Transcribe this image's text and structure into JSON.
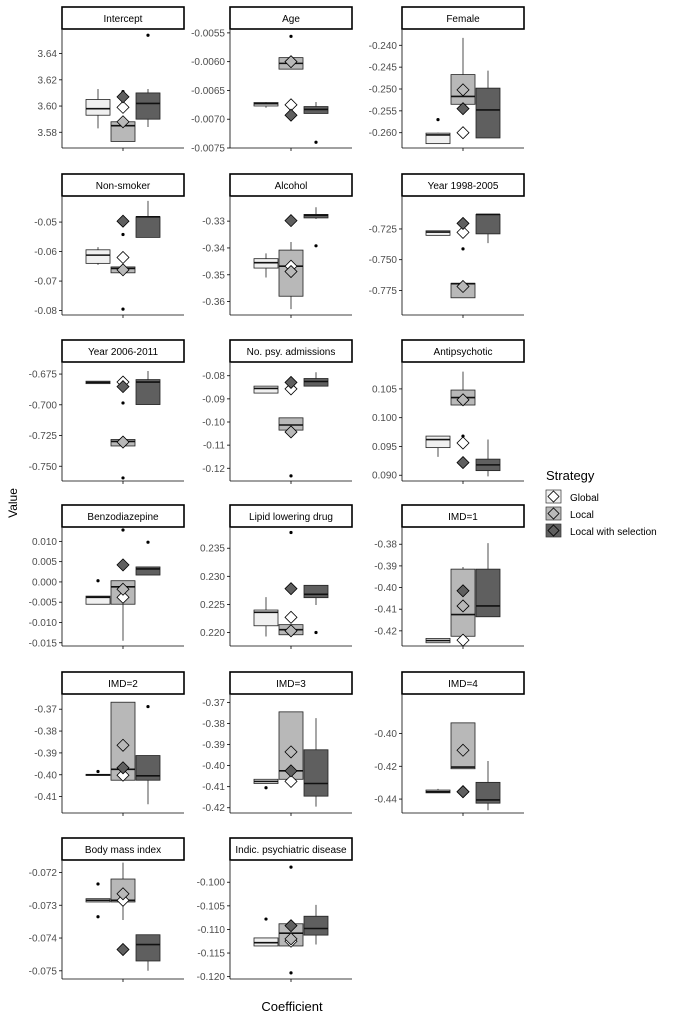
{
  "figure": {
    "ylabel": "Value",
    "xlabel": "Coefficient",
    "legend_title": "Strategy",
    "legend_position": "right"
  },
  "colors": {
    "global": "#f0f0f0",
    "local": "#b8b8b8",
    "local_selection": "#5f5f5f",
    "axis": "#000000",
    "tick_text": "#4d4d4d"
  },
  "chart_data": {
    "type": "boxplot",
    "strategies": [
      {
        "key": "global",
        "name": "Global"
      },
      {
        "key": "local",
        "name": "Local"
      },
      {
        "key": "local_selection",
        "name": "Local with selection"
      }
    ],
    "panels": [
      {
        "title": "Intercept",
        "ylim": [
          3.568,
          3.658
        ],
        "ticks": [
          3.58,
          3.6,
          3.62,
          3.64
        ],
        "tick_labels": [
          "3.58",
          "3.60",
          "3.62",
          "3.64"
        ],
        "boxes": [
          {
            "q1": 3.593,
            "median": 3.598,
            "q3": 3.605,
            "lo": 3.583,
            "hi": 3.613,
            "out": [],
            "mean": 3.599
          },
          {
            "q1": 3.573,
            "median": 3.585,
            "q3": 3.588,
            "lo": 3.573,
            "hi": 3.591,
            "out": [
              3.611
            ],
            "mean": 3.588
          },
          {
            "q1": 3.59,
            "median": 3.602,
            "q3": 3.61,
            "lo": 3.584,
            "hi": 3.613,
            "out": [
              3.654
            ],
            "mean": 3.607
          }
        ]
      },
      {
        "title": "Age",
        "ylim": [
          -0.0075,
          -0.00545
        ],
        "ticks": [
          -0.0075,
          -0.007,
          -0.0065,
          -0.006,
          -0.0055
        ],
        "tick_labels": [
          "-0.0075",
          "-0.0070",
          "-0.0065",
          "-0.0060",
          "-0.0055"
        ],
        "boxes": [
          {
            "q1": -0.00677,
            "median": -0.00673,
            "q3": -0.00671,
            "lo": -0.0068,
            "hi": -0.0067,
            "out": [],
            "mean": -0.00675
          },
          {
            "q1": -0.00613,
            "median": -0.00603,
            "q3": -0.00593,
            "lo": -0.00613,
            "hi": -0.00593,
            "out": [
              -0.00556
            ],
            "mean": -0.006
          },
          {
            "q1": -0.0069,
            "median": -0.00683,
            "q3": -0.00678,
            "lo": -0.0069,
            "hi": -0.0067,
            "out": [
              -0.0074
            ],
            "mean": -0.00693
          }
        ]
      },
      {
        "title": "Female",
        "ylim": [
          -0.2635,
          -0.2365
        ],
        "ticks": [
          -0.26,
          -0.255,
          -0.25,
          -0.245,
          -0.24
        ],
        "tick_labels": [
          "-0.260",
          "-0.255",
          "-0.250",
          "-0.245",
          "-0.240"
        ],
        "boxes": [
          {
            "q1": -0.2625,
            "median": -0.2605,
            "q3": -0.2601,
            "lo": -0.2625,
            "hi": -0.26,
            "out": [
              -0.257
            ],
            "mean": -0.26
          },
          {
            "q1": -0.2535,
            "median": -0.2517,
            "q3": -0.2467,
            "lo": -0.2535,
            "hi": -0.2383,
            "out": [],
            "mean": -0.2502
          },
          {
            "q1": -0.2612,
            "median": -0.2548,
            "q3": -0.2498,
            "lo": -0.2612,
            "hi": -0.2458,
            "out": [],
            "mean": -0.2545
          }
        ]
      },
      {
        "title": "Non-smoker",
        "ylim": [
          -0.0815,
          -0.0415
        ],
        "ticks": [
          -0.08,
          -0.07,
          -0.06,
          -0.05
        ],
        "tick_labels": [
          "-0.08",
          "-0.07",
          "-0.06",
          "-0.05"
        ],
        "boxes": [
          {
            "q1": -0.064,
            "median": -0.0612,
            "q3": -0.0594,
            "lo": -0.0645,
            "hi": -0.0585,
            "out": [],
            "mean": -0.062
          },
          {
            "q1": -0.0672,
            "median": -0.0657,
            "q3": -0.0652,
            "lo": -0.0672,
            "hi": -0.0652,
            "out": [
              -0.0795,
              -0.0542
            ],
            "mean": -0.0662
          },
          {
            "q1": -0.0552,
            "median": -0.0482,
            "q3": -0.0482,
            "lo": -0.0552,
            "hi": -0.0428,
            "out": [],
            "mean": -0.0497
          }
        ]
      },
      {
        "title": "Alcohol",
        "ylim": [
          -0.365,
          -0.321
        ],
        "ticks": [
          -0.36,
          -0.35,
          -0.34,
          -0.33
        ],
        "tick_labels": [
          "-0.36",
          "-0.35",
          "-0.34",
          "-0.33"
        ],
        "boxes": [
          {
            "q1": -0.3475,
            "median": -0.3455,
            "q3": -0.344,
            "lo": -0.351,
            "hi": -0.342,
            "out": [],
            "mean": -0.3468
          },
          {
            "q1": -0.358,
            "median": -0.3468,
            "q3": -0.3408,
            "lo": -0.3628,
            "hi": -0.3378,
            "out": [],
            "mean": -0.3488
          },
          {
            "q1": -0.3288,
            "median": -0.3278,
            "q3": -0.3275,
            "lo": -0.3292,
            "hi": -0.3248,
            "out": [
              -0.3392
            ],
            "mean": -0.3298
          }
        ]
      },
      {
        "title": "Year 1998-2005",
        "ylim": [
          -0.795,
          -0.699
        ],
        "ticks": [
          -0.775,
          -0.75,
          -0.725
        ],
        "tick_labels": [
          "-0.775",
          "-0.750",
          "-0.725"
        ],
        "boxes": [
          {
            "q1": -0.7302,
            "median": -0.7275,
            "q3": -0.7265,
            "lo": -0.7302,
            "hi": -0.7265,
            "out": [],
            "mean": -0.7278
          },
          {
            "q1": -0.781,
            "median": -0.7695,
            "q3": -0.7692,
            "lo": -0.781,
            "hi": -0.7692,
            "out": [
              -0.7412
            ],
            "mean": -0.7718
          },
          {
            "q1": -0.729,
            "median": -0.7132,
            "q3": -0.7132,
            "lo": -0.7365,
            "hi": -0.7132,
            "out": [],
            "mean": -0.7205
          }
        ]
      },
      {
        "title": "Year 2006-2011",
        "ylim": [
          -0.762,
          -0.666
        ],
        "ticks": [
          -0.75,
          -0.725,
          -0.7,
          -0.675
        ],
        "tick_labels": [
          "-0.750",
          "-0.725",
          "-0.700",
          "-0.675"
        ],
        "boxes": [
          {
            "q1": -0.6828,
            "median": -0.6818,
            "q3": -0.6808,
            "lo": -0.6828,
            "hi": -0.6808,
            "out": [],
            "mean": -0.6815
          },
          {
            "q1": -0.7335,
            "median": -0.7298,
            "q3": -0.7282,
            "lo": -0.7335,
            "hi": -0.7282,
            "out": [
              -0.6985,
              -0.7595
            ],
            "mean": -0.7303
          },
          {
            "q1": -0.6998,
            "median": -0.6815,
            "q3": -0.6795,
            "lo": -0.6998,
            "hi": -0.6725,
            "out": [],
            "mean": -0.6852
          }
        ]
      },
      {
        "title": "No. psy. admissions",
        "ylim": [
          -0.1255,
          -0.0745
        ],
        "ticks": [
          -0.12,
          -0.11,
          -0.1,
          -0.09,
          -0.08
        ],
        "tick_labels": [
          "-0.12",
          "-0.11",
          "-0.10",
          "-0.09",
          "-0.08"
        ],
        "boxes": [
          {
            "q1": -0.0875,
            "median": -0.0855,
            "q3": -0.0845,
            "lo": -0.0875,
            "hi": -0.0845,
            "out": [],
            "mean": -0.0857
          },
          {
            "q1": -0.1035,
            "median": -0.1013,
            "q3": -0.0982,
            "lo": -0.1035,
            "hi": -0.0982,
            "out": [
              -0.1233
            ],
            "mean": -0.1043
          },
          {
            "q1": -0.0845,
            "median": -0.0825,
            "q3": -0.0812,
            "lo": -0.0845,
            "hi": -0.0785,
            "out": [],
            "mean": -0.0829
          }
        ]
      },
      {
        "title": "Antipsychotic",
        "ylim": [
          0.089,
          0.1095
        ],
        "ticks": [
          0.09,
          0.095,
          0.1,
          0.105
        ],
        "tick_labels": [
          "0.090",
          "0.095",
          "0.100",
          "0.105"
        ],
        "boxes": [
          {
            "q1": 0.0948,
            "median": 0.0962,
            "q3": 0.0968,
            "lo": 0.0932,
            "hi": 0.0968,
            "out": [],
            "mean": 0.0956
          },
          {
            "q1": 0.1022,
            "median": 0.1035,
            "q3": 0.1048,
            "lo": 0.1022,
            "hi": 0.108,
            "out": [
              0.0968
            ],
            "mean": 0.1031
          },
          {
            "q1": 0.0908,
            "median": 0.0918,
            "q3": 0.0928,
            "lo": 0.0898,
            "hi": 0.0962,
            "out": [],
            "mean": 0.0922
          }
        ]
      },
      {
        "title": "Benzodiazepine",
        "ylim": [
          -0.0158,
          0.0133
        ],
        "ticks": [
          -0.015,
          -0.01,
          -0.005,
          0.0,
          0.005,
          0.01
        ],
        "tick_labels": [
          "-0.015",
          "-0.010",
          "-0.005",
          "0.000",
          "0.005",
          "0.010"
        ],
        "boxes": [
          {
            "q1": -0.0055,
            "median": -0.0038,
            "q3": -0.0035,
            "lo": -0.0055,
            "hi": -0.0035,
            "out": [
              0.0003
            ],
            "mean": -0.0038
          },
          {
            "q1": -0.0055,
            "median": -0.0012,
            "q3": 0.0003,
            "lo": -0.0145,
            "hi": 0.0003,
            "out": [
              0.0128
            ],
            "mean": -0.0018
          },
          {
            "q1": 0.0017,
            "median": 0.0032,
            "q3": 0.0037,
            "lo": 0.0017,
            "hi": 0.0037,
            "out": [
              0.0098
            ],
            "mean": 0.0042
          }
        ]
      },
      {
        "title": "Lipid lowering drug",
        "ylim": [
          0.2176,
          0.2386
        ],
        "ticks": [
          0.22,
          0.225,
          0.23,
          0.235
        ],
        "tick_labels": [
          "0.220",
          "0.225",
          "0.230",
          "0.235"
        ],
        "boxes": [
          {
            "q1": 0.2212,
            "median": 0.2236,
            "q3": 0.224,
            "lo": 0.2193,
            "hi": 0.2263,
            "out": [],
            "mean": 0.2227
          },
          {
            "q1": 0.2196,
            "median": 0.2205,
            "q3": 0.2214,
            "lo": 0.2196,
            "hi": 0.2214,
            "out": [
              0.2378
            ],
            "mean": 0.2203
          },
          {
            "q1": 0.2262,
            "median": 0.2268,
            "q3": 0.2284,
            "lo": 0.2249,
            "hi": 0.2284,
            "out": [
              0.22
            ],
            "mean": 0.2278
          }
        ]
      },
      {
        "title": "IMD=1",
        "ylim": [
          -0.427,
          -0.3725
        ],
        "ticks": [
          -0.42,
          -0.41,
          -0.4,
          -0.39,
          -0.38
        ],
        "tick_labels": [
          "-0.42",
          "-0.41",
          "-0.40",
          "-0.39",
          "-0.38"
        ],
        "boxes": [
          {
            "q1": -0.4255,
            "median": -0.4245,
            "q3": -0.4235,
            "lo": -0.4255,
            "hi": -0.4235,
            "out": [],
            "mean": -0.4243
          },
          {
            "q1": -0.4225,
            "median": -0.4125,
            "q3": -0.3915,
            "lo": -0.4255,
            "hi": -0.3905,
            "out": [],
            "mean": -0.4085
          },
          {
            "q1": -0.4135,
            "median": -0.4085,
            "q3": -0.3915,
            "lo": -0.4135,
            "hi": -0.3795,
            "out": [],
            "mean": -0.4015
          }
        ]
      },
      {
        "title": "IMD=2",
        "ylim": [
          -0.4175,
          -0.3635
        ],
        "ticks": [
          -0.41,
          -0.4,
          -0.39,
          -0.38,
          -0.37
        ],
        "tick_labels": [
          "-0.41",
          "-0.40",
          "-0.39",
          "-0.38",
          "-0.37"
        ],
        "boxes": [
          {
            "q1": -0.4002,
            "median": -0.4,
            "q3": -0.3998,
            "lo": -0.4002,
            "hi": -0.3998,
            "out": [
              -0.3985
            ],
            "mean": -0.4002
          },
          {
            "q1": -0.4025,
            "median": -0.3975,
            "q3": -0.3668,
            "lo": -0.4025,
            "hi": -0.3668,
            "out": [],
            "mean": -0.3865
          },
          {
            "q1": -0.4025,
            "median": -0.4005,
            "q3": -0.3912,
            "lo": -0.4135,
            "hi": -0.3912,
            "out": [
              -0.3688
            ],
            "mean": -0.3968
          }
        ]
      },
      {
        "title": "IMD=3",
        "ylim": [
          -0.4225,
          -0.3665
        ],
        "ticks": [
          -0.42,
          -0.41,
          -0.4,
          -0.39,
          -0.38,
          -0.37
        ],
        "tick_labels": [
          "-0.42",
          "-0.41",
          "-0.40",
          "-0.39",
          "-0.38",
          "-0.37"
        ],
        "boxes": [
          {
            "q1": -0.4085,
            "median": -0.4075,
            "q3": -0.4065,
            "lo": -0.4085,
            "hi": -0.4065,
            "out": [
              -0.4105
            ],
            "mean": -0.4075
          },
          {
            "q1": -0.4065,
            "median": -0.4025,
            "q3": -0.3745,
            "lo": -0.4065,
            "hi": -0.3745,
            "out": [],
            "mean": -0.3935
          },
          {
            "q1": -0.4145,
            "median": -0.4085,
            "q3": -0.3925,
            "lo": -0.4195,
            "hi": -0.3775,
            "out": [],
            "mean": -0.4025
          }
        ]
      },
      {
        "title": "IMD=4",
        "ylim": [
          -0.4485,
          -0.3765
        ],
        "ticks": [
          -0.44,
          -0.42,
          -0.4
        ],
        "tick_labels": [
          "-0.44",
          "-0.42",
          "-0.40"
        ],
        "boxes": [
          {
            "q1": -0.4362,
            "median": -0.4355,
            "q3": -0.4345,
            "lo": -0.4362,
            "hi": -0.4338,
            "out": [],
            "mean": -0.4355
          },
          {
            "q1": -0.4215,
            "median": -0.4205,
            "q3": -0.3935,
            "lo": -0.4215,
            "hi": -0.3935,
            "out": [],
            "mean": -0.4102
          },
          {
            "q1": -0.4425,
            "median": -0.4405,
            "q3": -0.4298,
            "lo": -0.4468,
            "hi": -0.4168,
            "out": [],
            "mean": -0.4355
          }
        ]
      },
      {
        "title": "Body mass index",
        "ylim": [
          -0.07525,
          -0.07165
        ],
        "ticks": [
          -0.075,
          -0.074,
          -0.073,
          -0.072
        ],
        "tick_labels": [
          "-0.075",
          "-0.074",
          "-0.073",
          "-0.072"
        ],
        "boxes": [
          {
            "q1": -0.0729,
            "median": -0.07285,
            "q3": -0.0728,
            "lo": -0.0729,
            "hi": -0.0728,
            "out": [
              -0.07335,
              -0.07235
            ],
            "mean": -0.07285
          },
          {
            "q1": -0.0729,
            "median": -0.07285,
            "q3": -0.0722,
            "lo": -0.07345,
            "hi": -0.0717,
            "out": [],
            "mean": -0.07265
          },
          {
            "q1": -0.0747,
            "median": -0.0742,
            "q3": -0.0739,
            "lo": -0.075,
            "hi": -0.0739,
            "out": [],
            "mean": -0.07435
          }
        ]
      },
      {
        "title": "Indic. psychiatric disease",
        "ylim": [
          -0.1205,
          -0.0955
        ],
        "ticks": [
          -0.12,
          -0.115,
          -0.11,
          -0.105,
          -0.1
        ],
        "tick_labels": [
          "-0.120",
          "-0.115",
          "-0.110",
          "-0.105",
          "-0.100"
        ],
        "boxes": [
          {
            "q1": -0.1135,
            "median": -0.1128,
            "q3": -0.1118,
            "lo": -0.1135,
            "hi": -0.1118,
            "out": [
              -0.1078
            ],
            "mean": -0.1125
          },
          {
            "q1": -0.1135,
            "median": -0.1108,
            "q3": -0.1088,
            "lo": -0.1135,
            "hi": -0.1088,
            "out": [
              -0.0968,
              -0.1192
            ],
            "mean": -0.112
          },
          {
            "q1": -0.1112,
            "median": -0.1098,
            "q3": -0.1072,
            "lo": -0.1132,
            "hi": -0.1048,
            "out": [],
            "mean": -0.1092
          }
        ]
      }
    ]
  }
}
